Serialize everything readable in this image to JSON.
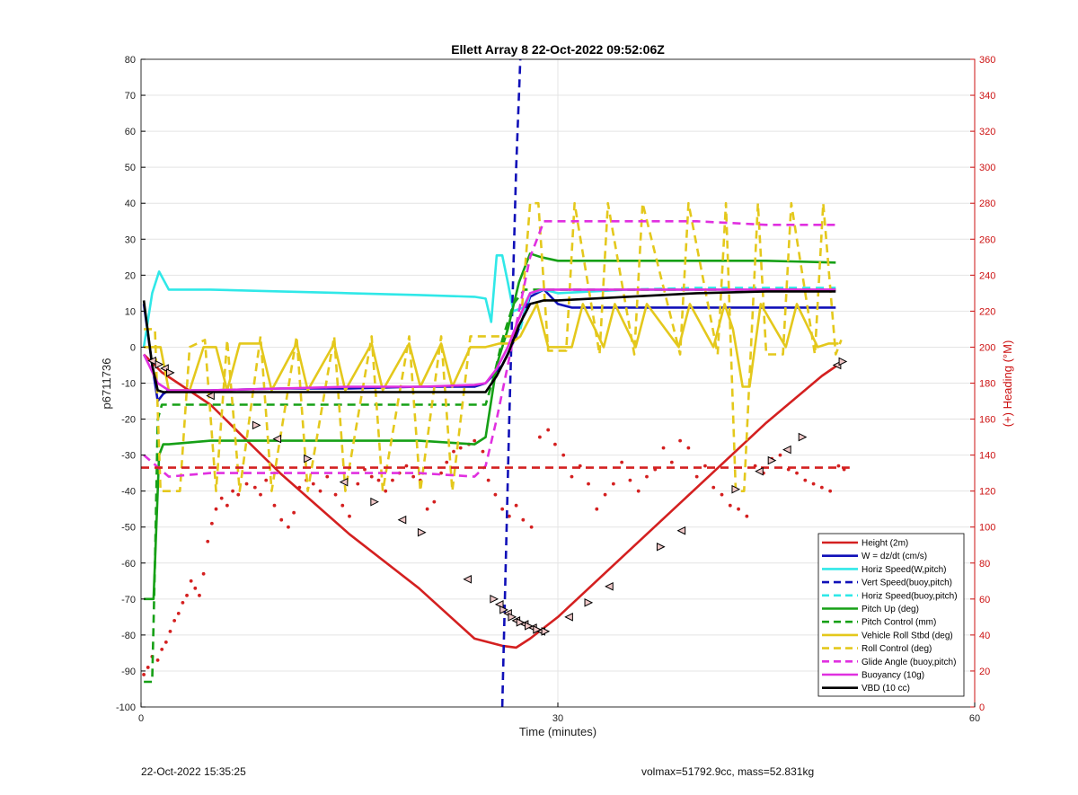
{
  "footer": {
    "left": "22-Oct-2022 15:35:25",
    "right": "volmax=51792.9cc, mass=52.831kg"
  },
  "chart_data": {
    "type": "line",
    "title": "Ellett Array 8 22-Oct-2022 09:52:06Z",
    "xlabel": "Time (minutes)",
    "ylabel": "p6711736",
    "y2label": "(+) Heading (°M)",
    "xlim": [
      0,
      60
    ],
    "ylim": [
      -100,
      80
    ],
    "y2lim": [
      0,
      360
    ],
    "xticks": [
      0,
      30,
      60
    ],
    "yticks": [
      -100,
      -90,
      -80,
      -70,
      -60,
      -50,
      -40,
      -30,
      -20,
      -10,
      0,
      10,
      20,
      30,
      40,
      50,
      60,
      70,
      80
    ],
    "y2ticks": [
      0,
      20,
      40,
      60,
      80,
      100,
      120,
      140,
      160,
      180,
      200,
      220,
      240,
      260,
      280,
      300,
      320,
      340,
      360
    ],
    "grid": true,
    "legend_position": "bottom-right",
    "colors": {
      "red": "#d42020",
      "blue": "#1010b8",
      "cyan": "#30e8e8",
      "green": "#16a016",
      "yellow": "#e4c81c",
      "magenta": "#e030e0",
      "black": "#000000"
    },
    "legend": [
      {
        "label": "Height (2m)",
        "color": "red",
        "dash": false
      },
      {
        "label": "W = dz/dt (cm/s)",
        "color": "blue",
        "dash": false
      },
      {
        "label": "Horiz Speed(W,pitch)",
        "color": "cyan",
        "dash": false
      },
      {
        "label": "Vert Speed(buoy,pitch)",
        "color": "blue",
        "dash": true
      },
      {
        "label": "Horiz Speed(buoy,pitch)",
        "color": "cyan",
        "dash": true
      },
      {
        "label": "Pitch Up (deg)",
        "color": "green",
        "dash": false
      },
      {
        "label": "Pitch Control (mm)",
        "color": "green",
        "dash": true
      },
      {
        "label": "Vehicle Roll Stbd (deg)",
        "color": "yellow",
        "dash": false
      },
      {
        "label": "Roll Control (deg)",
        "color": "yellow",
        "dash": true
      },
      {
        "label": "Glide Angle (buoy,pitch)",
        "color": "magenta",
        "dash": true
      },
      {
        "label": "Buoyancy (10g)",
        "color": "magenta",
        "dash": false
      },
      {
        "label": "VBD (10 cc)",
        "color": "black",
        "dash": false
      }
    ],
    "series": [
      {
        "name": "Height (2m)",
        "color": "red",
        "dash": false,
        "x": [
          0.2,
          1.5,
          5,
          10,
          15,
          20,
          24,
          26,
          27,
          28,
          30,
          35,
          40,
          45,
          49,
          50.5
        ],
        "y": [
          -2,
          -7,
          -16,
          -35,
          -52,
          -67,
          -81,
          -83,
          -83.5,
          -81,
          -75,
          -57,
          -39,
          -21,
          -8,
          -4
        ]
      },
      {
        "name": "W = dz/dt (cm/s)",
        "color": "blue",
        "dash": false,
        "x": [
          0.2,
          0.8,
          1.2,
          1.6,
          2,
          5,
          10,
          15,
          20,
          24,
          24.8,
          26,
          27,
          28,
          29,
          30,
          31,
          35,
          40,
          45,
          50
        ],
        "y": [
          12,
          -5,
          -15,
          -13,
          -12,
          -12,
          -11.5,
          -11.5,
          -11,
          -11,
          -10,
          -5,
          3,
          14,
          16,
          12,
          11,
          11,
          11,
          11,
          11
        ]
      },
      {
        "name": "Horiz Speed(W,pitch)",
        "color": "cyan",
        "dash": false,
        "x": [
          0.2,
          0.8,
          1.3,
          2,
          5,
          10,
          15,
          20,
          24,
          24.8,
          25.2,
          25.6,
          26,
          26.4,
          26.8,
          27.5,
          28,
          29,
          30,
          35,
          40,
          45,
          50
        ],
        "y": [
          0,
          15,
          21,
          16,
          16,
          15.5,
          15,
          14.5,
          14,
          13.5,
          7,
          25.5,
          25.5,
          18,
          10,
          11,
          15,
          16,
          15,
          16,
          16,
          16,
          16
        ]
      },
      {
        "name": "Vert Speed(buoy,pitch)",
        "color": "blue",
        "dash": true,
        "x": [
          26.0,
          26.5,
          27.0,
          27.3
        ],
        "y": [
          -100,
          -20,
          50,
          80
        ]
      },
      {
        "name": "Horiz Speed(buoy,pitch)",
        "color": "cyan",
        "dash": true,
        "x": [
          27.3,
          28,
          29,
          30,
          35,
          40,
          45,
          50
        ],
        "y": [
          5,
          15,
          16,
          16,
          16,
          16.5,
          16.5,
          16.5
        ]
      },
      {
        "name": "Pitch Up (deg)",
        "color": "green",
        "dash": false,
        "x": [
          0.2,
          0.9,
          1.0,
          1.3,
          1.6,
          2,
          5,
          10,
          15,
          20,
          24,
          24.8,
          25.6,
          26.4,
          27.2,
          28,
          28.8,
          30,
          35,
          40,
          45,
          50
        ],
        "y": [
          -70,
          -70,
          -60,
          -30,
          -27,
          -27,
          -26,
          -26,
          -26,
          -26,
          -27,
          -25,
          -5,
          5,
          18,
          26,
          25,
          24,
          24,
          24,
          24,
          23.5
        ]
      },
      {
        "name": "Pitch Control (mm)",
        "color": "green",
        "dash": true,
        "x": [
          0.2,
          0.8,
          1.0,
          1.2,
          1.5,
          2,
          5,
          10,
          15,
          20,
          24,
          24.8,
          25.4,
          26,
          26.8,
          27.6,
          28,
          30,
          35,
          40,
          45,
          50
        ],
        "y": [
          -93,
          -93,
          -60,
          -20,
          -16,
          -16,
          -16,
          -16,
          -16,
          -16,
          -16,
          -16,
          -8,
          2,
          12,
          16,
          16,
          16,
          16,
          16,
          16,
          16
        ]
      },
      {
        "name": "Vehicle Roll Stbd (deg)",
        "color": "yellow",
        "dash": false,
        "x": [
          0.2,
          1.4,
          2,
          3.5,
          4.5,
          5.4,
          6.2,
          7.1,
          8.6,
          9.4,
          11.2,
          12.0,
          13.9,
          14.7,
          16.6,
          17.4,
          19.3,
          20.1,
          21.6,
          22.4,
          23.7,
          24.2,
          24.8,
          25.8,
          26.6,
          27.3,
          28.5,
          29.3,
          31.0,
          31.8,
          33.3,
          34.1,
          35.6,
          36.4,
          38.7,
          39.5,
          41.2,
          42.0,
          42.6,
          43.3,
          43.8,
          44.6,
          46.4,
          47.2,
          48.7,
          49.5,
          50.2
        ],
        "y": [
          0,
          0,
          -12,
          -12,
          0,
          0,
          -12,
          1,
          1,
          -12,
          1,
          -12,
          1,
          -12,
          1,
          -12,
          1,
          -11,
          1,
          -11,
          0,
          0,
          0,
          1,
          1,
          3,
          12,
          0,
          0,
          12,
          0,
          12,
          0,
          12,
          0,
          12,
          0,
          12,
          5,
          -11,
          -11,
          12,
          0,
          12,
          0,
          1,
          1
        ]
      },
      {
        "name": "Roll Control (deg)",
        "color": "yellow",
        "dash": true,
        "x": [
          0.2,
          1.0,
          1.4,
          2.8,
          3.5,
          4.6,
          5.4,
          6.2,
          7.1,
          8.6,
          9.4,
          11.2,
          12.0,
          13.9,
          14.7,
          16.6,
          17.4,
          19.3,
          20.1,
          21.6,
          22.4,
          23.7,
          24.3,
          25.6,
          26.2,
          26.8,
          27.4,
          28.0,
          28.6,
          29.3,
          30.6,
          31.2,
          33.0,
          33.6,
          35.5,
          36.1,
          38.8,
          39.4,
          41.5,
          42.1,
          42.8,
          43.4,
          44.4,
          45.0,
          46.2,
          46.8,
          48.5,
          49.1,
          50.0,
          50.4
        ],
        "y": [
          5,
          5,
          -40,
          -40,
          0,
          2,
          -40,
          2,
          -40,
          3,
          -40,
          3,
          -40,
          3,
          -40,
          3,
          -40,
          3,
          -40,
          3,
          -40,
          3,
          3,
          3,
          3,
          3,
          10,
          40,
          40,
          -1,
          -1,
          40,
          -2,
          40,
          -2,
          40,
          -2,
          40,
          -2,
          40,
          -40,
          -40,
          40,
          -2,
          -2,
          40,
          -2,
          40,
          -2,
          2
        ]
      },
      {
        "name": "Glide Angle (buoy,pitch)",
        "color": "magenta",
        "dash": true,
        "x": [
          0.2,
          2,
          5,
          10,
          15,
          20,
          24,
          24.8,
          25.6,
          26.4,
          27.2,
          28,
          29,
          30,
          35,
          40,
          45,
          50
        ],
        "y": [
          -30,
          -36,
          -35,
          -35,
          -35,
          -35,
          -36,
          -33,
          -20,
          -5,
          10,
          25,
          35,
          35,
          35,
          35,
          34,
          34
        ]
      },
      {
        "name": "Buoyancy (10g)",
        "color": "magenta",
        "dash": false,
        "x": [
          0.2,
          1.2,
          2,
          5,
          10,
          15,
          20,
          24,
          24.8,
          25.6,
          26.4,
          27.2,
          28,
          28.8,
          30,
          35,
          40,
          45,
          50
        ],
        "y": [
          -2,
          -10,
          -12,
          -12,
          -11.5,
          -11,
          -11,
          -10.5,
          -10,
          -6,
          0,
          8,
          15,
          16,
          16,
          16,
          16,
          16,
          16
        ]
      },
      {
        "name": "VBD (10 cc)",
        "color": "black",
        "dash": false,
        "x": [
          0.2,
          0.8,
          1.2,
          1.6,
          2,
          5,
          10,
          15,
          20,
          24,
          24.8,
          25.6,
          26.4,
          27.2,
          28,
          29,
          30,
          35,
          40,
          45,
          50
        ],
        "y": [
          13,
          -5,
          -12,
          -12.5,
          -12.5,
          -12.5,
          -12.5,
          -12.5,
          -12.5,
          -12.5,
          -12.5,
          -8,
          -2,
          6,
          12,
          13,
          13,
          14,
          15,
          15.5,
          15.5
        ]
      },
      {
        "name": "heading-ref",
        "color": "red",
        "dash": true,
        "axis": "right",
        "x": [
          0,
          51
        ],
        "y": [
          133,
          133
        ]
      }
    ],
    "heading_points": {
      "color": "red",
      "x": [
        0.2,
        0.5,
        0.8,
        1.2,
        1.5,
        1.8,
        2.1,
        2.4,
        2.7,
        3.0,
        3.3,
        3.6,
        3.9,
        4.2,
        4.5,
        4.8,
        5.1,
        5.4,
        5.8,
        6.2,
        6.6,
        7.0,
        7.6,
        8.2,
        8.6,
        9.0,
        9.6,
        10.1,
        10.6,
        11.0,
        11.4,
        11.9,
        12.4,
        12.9,
        13.4,
        14.0,
        14.5,
        15.0,
        15.6,
        16.1,
        16.6,
        17.1,
        17.6,
        18.1,
        18.6,
        19.1,
        19.6,
        20.1,
        20.6,
        21.1,
        21.6,
        22.0,
        22.5,
        23.0,
        23.6,
        24.0,
        24.6,
        25.0,
        25.5,
        26.0,
        26.5,
        27.0,
        27.5,
        28.1,
        28.7,
        29.3,
        29.8,
        30.4,
        31.0,
        31.6,
        32.2,
        32.8,
        33.4,
        34.0,
        34.6,
        35.2,
        35.8,
        36.4,
        37.0,
        37.6,
        38.2,
        38.8,
        39.4,
        40.0,
        40.6,
        41.2,
        41.8,
        42.4,
        43.0,
        43.6,
        44.2,
        44.8,
        45.4,
        46.0,
        46.6,
        47.2,
        47.8,
        48.4,
        49.0,
        49.6,
        50.2,
        50.6
      ],
      "y": [
        18,
        22,
        28,
        26,
        32,
        36,
        42,
        48,
        52,
        58,
        62,
        70,
        66,
        62,
        74,
        92,
        102,
        110,
        116,
        112,
        120,
        118,
        124,
        122,
        118,
        126,
        112,
        104,
        100,
        108,
        122,
        126,
        124,
        120,
        128,
        118,
        112,
        106,
        124,
        132,
        128,
        126,
        120,
        126,
        130,
        134,
        128,
        126,
        110,
        114,
        130,
        136,
        142,
        144,
        146,
        148,
        142,
        126,
        118,
        110,
        106,
        112,
        104,
        100,
        150,
        154,
        146,
        140,
        128,
        134,
        124,
        110,
        118,
        124,
        136,
        126,
        120,
        128,
        132,
        144,
        136,
        148,
        144,
        128,
        134,
        122,
        118,
        112,
        110,
        106,
        134,
        130,
        138,
        140,
        132,
        130,
        126,
        124,
        122,
        120,
        134,
        132
      ]
    },
    "height_markers": {
      "x": [
        0.8,
        1.3,
        1.7,
        2.1,
        5.0,
        8.3,
        9.8,
        12.0,
        14.6,
        16.8,
        18.8,
        20.2,
        23.5,
        25.4,
        25.8,
        26.1,
        26.4,
        26.7,
        27.0,
        27.3,
        27.6,
        27.9,
        28.2,
        28.5,
        28.8,
        29.1,
        30.8,
        32.2,
        33.7,
        37.4,
        38.9,
        42.8,
        44.5,
        45.4,
        46.5,
        47.6,
        50.1,
        50.5
      ],
      "y": [
        -3.8,
        -4.8,
        -5.9,
        -7.1,
        -13.5,
        -21.7,
        -25.5,
        -31,
        -37.5,
        -43,
        -48,
        -51.5,
        -64.5,
        -70,
        -71.5,
        -73,
        -74,
        -75,
        -76,
        -76.5,
        -77,
        -77.5,
        -78,
        -78.5,
        -79,
        -79,
        -75,
        -71,
        -66.5,
        -55.5,
        -51,
        -39.5,
        -34.5,
        -31.5,
        -28.5,
        -25,
        -5,
        -4
      ]
    }
  }
}
